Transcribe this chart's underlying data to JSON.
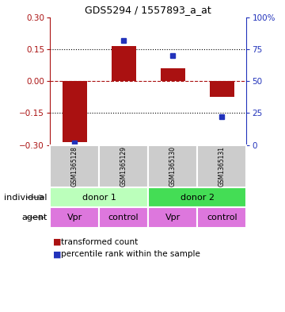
{
  "title": "GDS5294 / 1557893_a_at",
  "categories": [
    "GSM1365128",
    "GSM1365129",
    "GSM1365130",
    "GSM1365131"
  ],
  "red_values": [
    -0.285,
    0.165,
    0.06,
    -0.075
  ],
  "blue_values_pct": [
    2,
    82,
    70,
    22
  ],
  "ylim_left": [
    -0.3,
    0.3
  ],
  "ylim_right": [
    0,
    100
  ],
  "yticks_left": [
    -0.3,
    -0.15,
    0,
    0.15,
    0.3
  ],
  "yticks_right": [
    0,
    25,
    50,
    75,
    100
  ],
  "hlines_dotted": [
    -0.15,
    0.15
  ],
  "hline_dashed": 0,
  "red_color": "#aa1111",
  "blue_color": "#2233bb",
  "bar_width": 0.5,
  "donor_colors": [
    "#bbffbb",
    "#44dd55"
  ],
  "donor_labels": [
    "donor 1",
    "donor 2"
  ],
  "agent_color": "#dd77dd",
  "agent_labels": [
    "Vpr",
    "control",
    "Vpr",
    "control"
  ],
  "sample_label_bg": "#cccccc",
  "legend_red": "transformed count",
  "legend_blue": "percentile rank within the sample",
  "row_label_individual": "individual",
  "row_label_agent": "agent"
}
